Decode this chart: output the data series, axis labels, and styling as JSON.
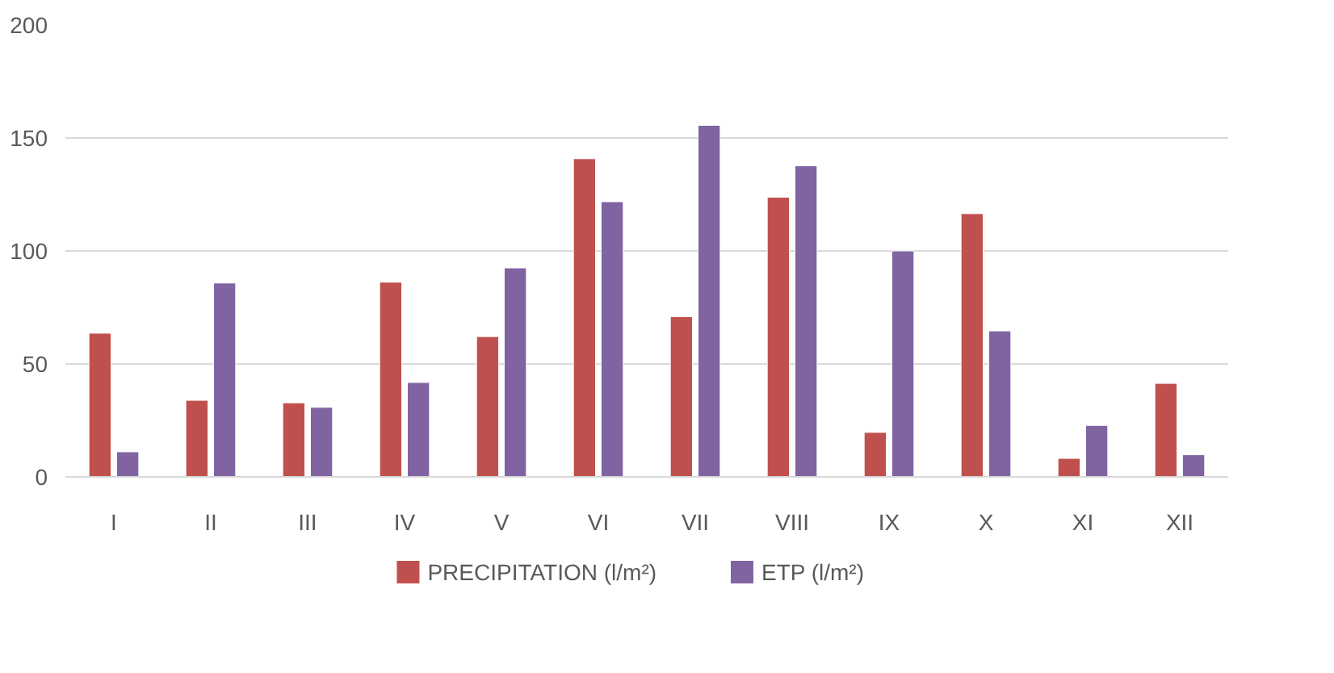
{
  "chart_data": {
    "type": "bar",
    "categories": [
      "I",
      "II",
      "III",
      "IV",
      "V",
      "VI",
      "VII",
      "VIII",
      "IX",
      "X",
      "XI",
      "XII"
    ],
    "series": [
      {
        "name": "PRECIPITATION (l/m²)",
        "color": "#c0504d",
        "values": [
          63.6,
          33.9,
          32.8,
          86.2,
          62.1,
          140.8,
          70.9,
          123.8,
          19.7,
          116.5,
          8.2,
          41.4
        ]
      },
      {
        "name": "ETP  (l/m²)",
        "color": "#8064a2",
        "values": [
          11.1,
          85.8,
          30.8,
          41.8,
          92.5,
          121.8,
          155.6,
          137.7,
          100,
          64.6,
          22.8,
          9.8
        ]
      }
    ],
    "ylim": [
      0,
      200
    ],
    "yticks": [
      0,
      50,
      100,
      150,
      200
    ],
    "grid": "y",
    "legend": "bottom"
  }
}
